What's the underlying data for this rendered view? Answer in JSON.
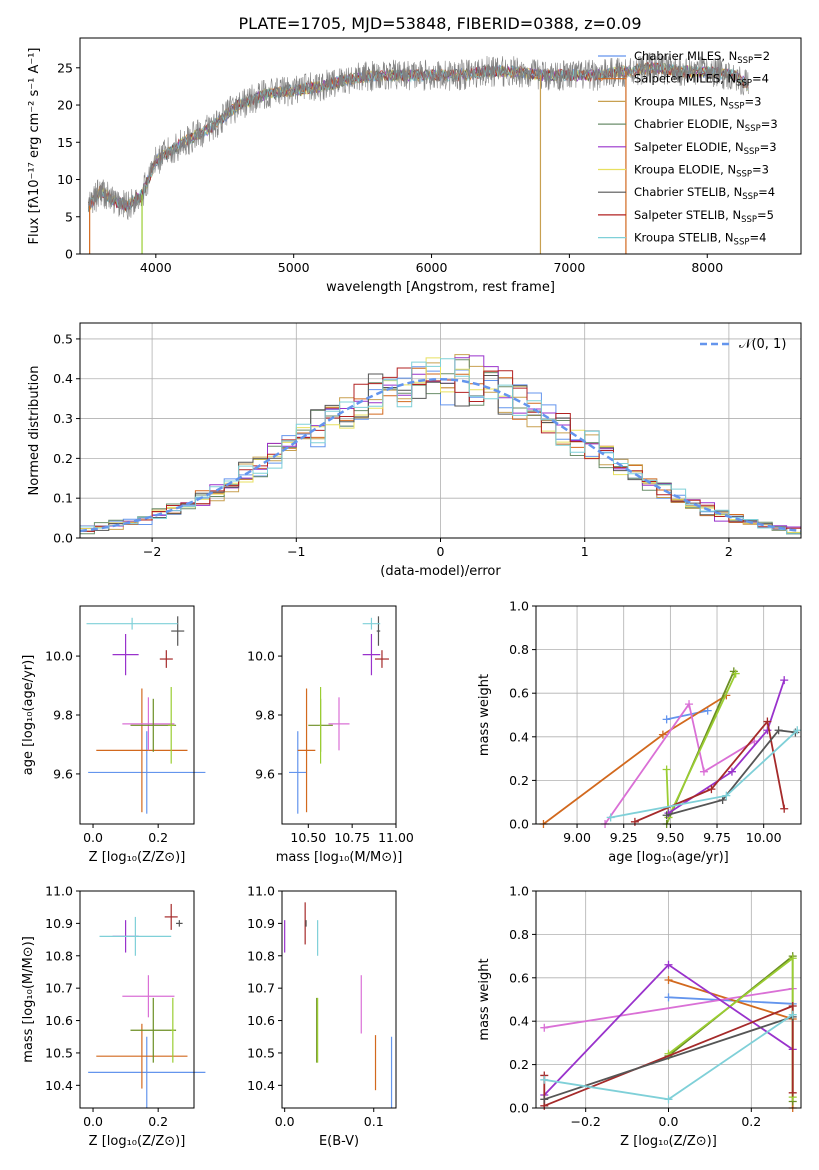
{
  "figure": {
    "title": "PLATE=1705, MJD=53848, FIBERID=0388, z=0.09"
  },
  "chart_data": [
    {
      "id": "spectrum",
      "type": "line",
      "xlabel": "wavelength [Angstrom, rest frame]",
      "ylabel": "Flux [fλ10⁻¹⁷ erg cm⁻² s⁻¹ A⁻¹]",
      "xlim": [
        3450,
        8680
      ],
      "ylim": [
        0,
        29
      ],
      "xticks": [
        4000,
        5000,
        6000,
        7000,
        8000
      ],
      "yticks": [
        0,
        5,
        10,
        15,
        20,
        25
      ],
      "grid": false,
      "legend_placement": "top-right",
      "note_markers_at": [
        3520,
        3900,
        6790,
        7410
      ],
      "spectrum_anchor_points": [
        [
          3500,
          6.0
        ],
        [
          3600,
          8.5
        ],
        [
          3700,
          7.0
        ],
        [
          3800,
          6.5
        ],
        [
          3900,
          8.0
        ],
        [
          4000,
          12.5
        ],
        [
          4200,
          15.0
        ],
        [
          4400,
          17.0
        ],
        [
          4600,
          20.0
        ],
        [
          4800,
          21.5
        ],
        [
          5000,
          22.0
        ],
        [
          5200,
          22.5
        ],
        [
          5400,
          23.5
        ],
        [
          5600,
          24.0
        ],
        [
          5800,
          24.0
        ],
        [
          6000,
          24.0
        ],
        [
          6200,
          24.0
        ],
        [
          6400,
          24.5
        ],
        [
          6600,
          24.5
        ],
        [
          6800,
          24.0
        ],
        [
          7000,
          24.0
        ],
        [
          7200,
          24.0
        ],
        [
          7400,
          24.5
        ],
        [
          7600,
          25.0
        ],
        [
          7800,
          24.5
        ],
        [
          8000,
          24.5
        ],
        [
          8200,
          24.0
        ],
        [
          8300,
          22.5
        ]
      ]
    },
    {
      "id": "residuals",
      "type": "line",
      "xlabel": "(data-model)/error",
      "ylabel": "Normed distribution",
      "xlim": [
        -2.5,
        2.5
      ],
      "ylim": [
        0,
        0.54
      ],
      "xticks": [
        -2,
        -1,
        0,
        1,
        2
      ],
      "yticks": [
        0.0,
        0.1,
        0.2,
        0.3,
        0.4,
        0.5
      ],
      "grid": true,
      "legend_placement": "top-right",
      "gaussian_label": "𝒩(0, 1)"
    },
    {
      "id": "age-vs-Z",
      "type": "scatter",
      "xlabel": "Z [log₁₀(Z/Z⊙)]",
      "ylabel": "age  [log₁₀(age/yr)]",
      "xlim": [
        -0.04,
        0.31
      ],
      "ylim": [
        9.43,
        10.17
      ],
      "xticks": [
        0.0,
        0.2
      ],
      "yticks": [
        9.6,
        9.8,
        10.0
      ],
      "grid": false,
      "errorbars": [
        {
          "c": "#6495ED",
          "x": 0.165,
          "y": 9.605,
          "xe": 0.18,
          "ye": 0.14
        },
        {
          "c": "#D2691E",
          "x": 0.15,
          "y": 9.68,
          "xe": 0.14,
          "ye": 0.21
        },
        {
          "c": "#DA70D6",
          "x": 0.17,
          "y": 9.77,
          "xe": 0.08,
          "ye": 0.09
        },
        {
          "c": "#6B8E23",
          "x": 0.185,
          "y": 9.765,
          "xe": 0.07,
          "ye": 0.09
        },
        {
          "c": "#9ACD32",
          "x": 0.24,
          "y": 9.765,
          "xe": 0.01,
          "ye": 0.13
        },
        {
          "c": "#9932CC",
          "x": 0.1,
          "y": 10.005,
          "xe": 0.04,
          "ye": 0.07
        },
        {
          "c": "#A52A2A",
          "x": 0.225,
          "y": 9.99,
          "xe": 0.02,
          "ye": 0.03
        },
        {
          "c": "#555555",
          "x": 0.26,
          "y": 10.085,
          "xe": 0.02,
          "ye": 0.05
        },
        {
          "c": "#7FD0D8",
          "x": 0.12,
          "y": 10.11,
          "xe": 0.14,
          "ye": 0.02
        }
      ]
    },
    {
      "id": "age-vs-mass",
      "type": "scatter",
      "xlabel": "mass [log₁₀(M/M⊙)]",
      "ylabel": "",
      "xlim": [
        10.35,
        11.0
      ],
      "ylim": [
        9.43,
        10.17
      ],
      "xticks": [
        10.5,
        10.75,
        11.0
      ],
      "yticks": [
        9.6,
        9.8,
        10.0
      ],
      "grid": false,
      "errorbars": [
        {
          "c": "#6495ED",
          "x": 10.44,
          "y": 9.605,
          "xe": 0.05,
          "ye": 0.14
        },
        {
          "c": "#D2691E",
          "x": 10.49,
          "y": 9.68,
          "xe": 0.05,
          "ye": 0.21
        },
        {
          "c": "#DA70D6",
          "x": 10.675,
          "y": 9.77,
          "xe": 0.06,
          "ye": 0.09
        },
        {
          "c": "#6B8E23",
          "x": 10.57,
          "y": 9.765,
          "xe": 0.07,
          "ye": 0.09
        },
        {
          "c": "#9ACD32",
          "x": 10.57,
          "y": 9.765,
          "xe": 0.005,
          "ye": 0.13
        },
        {
          "c": "#9932CC",
          "x": 10.86,
          "y": 10.005,
          "xe": 0.05,
          "ye": 0.07
        },
        {
          "c": "#A52A2A",
          "x": 10.92,
          "y": 9.99,
          "xe": 0.04,
          "ye": 0.03
        },
        {
          "c": "#555555",
          "x": 10.9,
          "y": 10.085,
          "xe": 0.01,
          "ye": 0.05
        },
        {
          "c": "#7FD0D8",
          "x": 10.86,
          "y": 10.11,
          "xe": 0.05,
          "ye": 0.02
        }
      ]
    },
    {
      "id": "weight-vs-age",
      "type": "line",
      "xlabel": "age  [log₁₀(age/yr)]",
      "ylabel": "mass weight",
      "xlim": [
        8.78,
        10.2
      ],
      "ylim": [
        0,
        1.0
      ],
      "xticks": [
        9.0,
        9.25,
        9.5,
        9.75,
        10.0
      ],
      "yticks": [
        0.0,
        0.2,
        0.4,
        0.6,
        0.8,
        1.0
      ],
      "grid": true,
      "series": [
        {
          "c": "#6495ED",
          "pts": [
            [
              9.48,
              0.48
            ],
            [
              9.7,
              0.52
            ]
          ]
        },
        {
          "c": "#D2691E",
          "pts": [
            [
              8.82,
              0.0
            ],
            [
              9.46,
              0.41
            ],
            [
              9.8,
              0.59
            ]
          ]
        },
        {
          "c": "#DA70D6",
          "pts": [
            [
              9.15,
              0.0
            ],
            [
              9.6,
              0.55
            ],
            [
              9.68,
              0.24
            ],
            [
              9.95,
              0.38
            ]
          ]
        },
        {
          "c": "#6B8E23",
          "pts": [
            [
              9.48,
              0.0
            ],
            [
              9.84,
              0.7
            ]
          ]
        },
        {
          "c": "#9ACD32",
          "pts": [
            [
              9.48,
              0.25
            ],
            [
              9.49,
              0.03
            ],
            [
              9.85,
              0.69
            ]
          ]
        },
        {
          "c": "#9932CC",
          "pts": [
            [
              9.49,
              0.05
            ],
            [
              9.83,
              0.24
            ],
            [
              10.02,
              0.43
            ],
            [
              10.11,
              0.66
            ]
          ]
        },
        {
          "c": "#A52A2A",
          "pts": [
            [
              9.31,
              0.01
            ],
            [
              9.72,
              0.16
            ],
            [
              10.02,
              0.47
            ],
            [
              10.11,
              0.07
            ]
          ]
        },
        {
          "c": "#555555",
          "pts": [
            [
              9.48,
              0.04
            ],
            [
              9.78,
              0.11
            ],
            [
              10.08,
              0.43
            ],
            [
              10.17,
              0.42
            ]
          ]
        },
        {
          "c": "#7FD0D8",
          "pts": [
            [
              9.18,
              0.03
            ],
            [
              9.8,
              0.13
            ],
            [
              10.18,
              0.43
            ]
          ]
        }
      ]
    },
    {
      "id": "mass-vs-Z",
      "type": "scatter",
      "xlabel": "Z [log₁₀(Z/Z⊙)]",
      "ylabel": "mass [log₁₀(M/M⊙)]",
      "xlim": [
        -0.04,
        0.31
      ],
      "ylim": [
        10.33,
        11.0
      ],
      "xticks": [
        0.0,
        0.2
      ],
      "yticks": [
        10.4,
        10.5,
        10.6,
        10.7,
        10.8,
        10.9,
        11.0
      ],
      "grid": false,
      "errorbars": [
        {
          "c": "#6495ED",
          "x": 0.165,
          "y": 10.44,
          "xe": 0.18,
          "ye": 0.11
        },
        {
          "c": "#D2691E",
          "x": 0.15,
          "y": 10.49,
          "xe": 0.14,
          "ye": 0.1
        },
        {
          "c": "#DA70D6",
          "x": 0.17,
          "y": 10.675,
          "xe": 0.08,
          "ye": 0.065
        },
        {
          "c": "#6B8E23",
          "x": 0.185,
          "y": 10.57,
          "xe": 0.07,
          "ye": 0.1
        },
        {
          "c": "#9ACD32",
          "x": 0.245,
          "y": 10.57,
          "xe": 0.005,
          "ye": 0.1
        },
        {
          "c": "#9932CC",
          "x": 0.1,
          "y": 10.86,
          "xe": 0.04,
          "ye": 0.05
        },
        {
          "c": "#A52A2A",
          "x": 0.24,
          "y": 10.92,
          "xe": 0.02,
          "ye": 0.04
        },
        {
          "c": "#555555",
          "x": 0.265,
          "y": 10.9,
          "xe": 0.01,
          "ye": 0.01
        },
        {
          "c": "#7FD0D8",
          "x": 0.13,
          "y": 10.86,
          "xe": 0.11,
          "ye": 0.06
        }
      ]
    },
    {
      "id": "mass-vs-EBV",
      "type": "scatter",
      "xlabel": "E(B-V)",
      "ylabel": "",
      "xlim": [
        -0.003,
        0.125
      ],
      "ylim": [
        10.33,
        11.0
      ],
      "xticks": [
        0.0,
        0.1
      ],
      "yticks": [
        10.4,
        10.5,
        10.6,
        10.7,
        10.8,
        10.9,
        11.0
      ],
      "grid": false,
      "errorbars": [
        {
          "c": "#6495ED",
          "x": 0.12,
          "y": 10.44,
          "xe": 0.0,
          "ye": 0.11
        },
        {
          "c": "#D2691E",
          "x": 0.102,
          "y": 10.47,
          "xe": 0.0,
          "ye": 0.085
        },
        {
          "c": "#DA70D6",
          "x": 0.086,
          "y": 10.65,
          "xe": 0.0,
          "ye": 0.09
        },
        {
          "c": "#6B8E23",
          "x": 0.036,
          "y": 10.57,
          "xe": 0.0,
          "ye": 0.1
        },
        {
          "c": "#9ACD32",
          "x": 0.037,
          "y": 10.57,
          "xe": 0.0,
          "ye": 0.1
        },
        {
          "c": "#9932CC",
          "x": 0.0,
          "y": 10.86,
          "xe": 0.0,
          "ye": 0.05
        },
        {
          "c": "#A52A2A",
          "x": 0.023,
          "y": 10.9,
          "xe": 0.0,
          "ye": 0.065
        },
        {
          "c": "#555555",
          "x": 0.024,
          "y": 10.9,
          "xe": 0.0,
          "ye": 0.01
        },
        {
          "c": "#7FD0D8",
          "x": 0.037,
          "y": 10.855,
          "xe": 0.0,
          "ye": 0.055
        }
      ]
    },
    {
      "id": "weight-vs-Z",
      "type": "line",
      "xlabel": "Z [log₁₀(Z/Z⊙)]",
      "ylabel": "mass weight",
      "xlim": [
        -0.32,
        0.32
      ],
      "ylim": [
        0,
        1.0
      ],
      "xticks": [
        -0.2,
        0.0,
        0.2
      ],
      "yticks": [
        0.0,
        0.2,
        0.4,
        0.6,
        0.8,
        1.0
      ],
      "grid": true,
      "series": [
        {
          "c": "#6495ED",
          "pts": [
            [
              0.0,
              0.51
            ],
            [
              0.3,
              0.48
            ]
          ]
        },
        {
          "c": "#D2691E",
          "pts": [
            [
              0.0,
              0.59
            ],
            [
              0.3,
              0.41
            ],
            [
              0.3,
              0.0
            ]
          ]
        },
        {
          "c": "#DA70D6",
          "pts": [
            [
              -0.3,
              0.37
            ],
            [
              0.3,
              0.55
            ]
          ]
        },
        {
          "c": "#6B8E23",
          "pts": [
            [
              0.0,
              0.24
            ],
            [
              0.3,
              0.7
            ],
            [
              0.3,
              0.03
            ]
          ]
        },
        {
          "c": "#9ACD32",
          "pts": [
            [
              0.0,
              0.25
            ],
            [
              0.3,
              0.69
            ],
            [
              0.3,
              0.05
            ]
          ]
        },
        {
          "c": "#9932CC",
          "pts": [
            [
              -0.3,
              0.06
            ],
            [
              0.0,
              0.66
            ],
            [
              0.3,
              0.27
            ]
          ]
        },
        {
          "c": "#A52A2A",
          "pts": [
            [
              -0.3,
              0.15
            ],
            [
              -0.3,
              0.01
            ],
            [
              0.3,
              0.47
            ],
            [
              0.3,
              0.07
            ]
          ]
        },
        {
          "c": "#555555",
          "pts": [
            [
              -0.3,
              0.04
            ],
            [
              0.3,
              0.42
            ]
          ]
        },
        {
          "c": "#7FD0D8",
          "pts": [
            [
              -0.3,
              0.13
            ],
            [
              0.0,
              0.04
            ],
            [
              0.3,
              0.43
            ]
          ]
        }
      ]
    }
  ],
  "legend": {
    "entries": [
      {
        "label": "Chabrier MILES, N",
        "sub": "SSP",
        "eq": "=2",
        "color": "#6495ED"
      },
      {
        "label": "Salpeter MILES, N",
        "sub": "SSP",
        "eq": "=4",
        "color": "#D2691E"
      },
      {
        "label": "Kroupa MILES, N",
        "sub": "SSP",
        "eq": "=3",
        "color": "#C8A050"
      },
      {
        "label": "Chabrier ELODIE, N",
        "sub": "SSP",
        "eq": "=3",
        "color": "#6B8E6B"
      },
      {
        "label": "Salpeter ELODIE, N",
        "sub": "SSP",
        "eq": "=3",
        "color": "#9932CC"
      },
      {
        "label": "Kroupa ELODIE, N",
        "sub": "SSP",
        "eq": "=3",
        "color": "#E8E060"
      },
      {
        "label": "Chabrier STELIB, N",
        "sub": "SSP",
        "eq": "=4",
        "color": "#555555"
      },
      {
        "label": "Salpeter STELIB, N",
        "sub": "SSP",
        "eq": "=5",
        "color": "#B22222"
      },
      {
        "label": "Kroupa STELIB, N",
        "sub": "SSP",
        "eq": "=4",
        "color": "#7FD0D8"
      }
    ]
  },
  "colors": {
    "series": [
      "#6495ED",
      "#D2691E",
      "#DA70D6",
      "#6B8E23",
      "#9ACD32",
      "#9932CC",
      "#A52A2A",
      "#555555",
      "#7FD0D8"
    ],
    "gaussian": "#6495ED",
    "grid": "#b0b0b0"
  }
}
